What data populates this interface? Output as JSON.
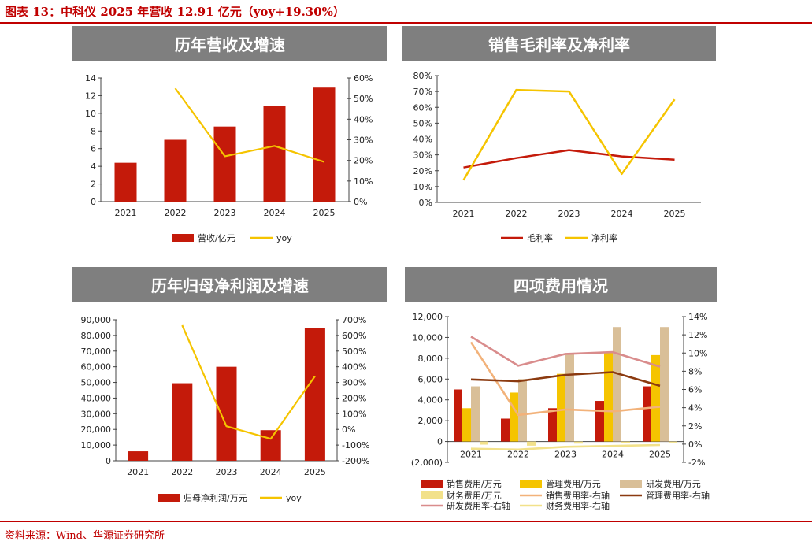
{
  "figure_title": "图表 13：中科仪 2025 年营收 12.91 亿元（yoy+19.30%）",
  "source": "资料来源：Wind、华源证券研究所",
  "colors": {
    "red": "#c41a0a",
    "yellow": "#f5c400",
    "tan": "#d9bf98",
    "pale_yellow": "#f2e18a",
    "pink": "#d98c8c",
    "brown": "#8b3a10",
    "peach": "#f2b27a",
    "banner": "#7f7f7f"
  },
  "chart_data": [
    {
      "id": "revenue",
      "type": "bar",
      "title": "历年营收及增速",
      "categories": [
        "2021",
        "2022",
        "2023",
        "2024",
        "2025"
      ],
      "y_ticks": [
        "0",
        "2",
        "4",
        "6",
        "8",
        "10",
        "12",
        "14"
      ],
      "y2_ticks": [
        "0%",
        "10%",
        "20%",
        "30%",
        "40%",
        "50%",
        "60%"
      ],
      "ylim": [
        0,
        14
      ],
      "y2lim": [
        0,
        60
      ],
      "series": [
        {
          "name": "营收/亿元",
          "kind": "bar",
          "axis": "left",
          "values": [
            4.4,
            7.0,
            8.5,
            10.8,
            12.91
          ]
        },
        {
          "name": "yoy",
          "kind": "line",
          "axis": "right",
          "values": [
            null,
            55,
            22,
            27,
            19.3
          ]
        }
      ],
      "legend": "bottom"
    },
    {
      "id": "margin",
      "type": "line",
      "title": "销售毛利率及净利率",
      "categories": [
        "2021",
        "2022",
        "2023",
        "2024",
        "2025"
      ],
      "y_ticks": [
        "0%",
        "10%",
        "20%",
        "30%",
        "40%",
        "50%",
        "60%",
        "70%",
        "80%"
      ],
      "ylim": [
        0,
        80
      ],
      "series": [
        {
          "name": "毛利率",
          "values": [
            22,
            28,
            33,
            29,
            27
          ]
        },
        {
          "name": "净利率",
          "values": [
            14,
            71,
            70,
            18,
            65
          ]
        }
      ],
      "legend": "bottom"
    },
    {
      "id": "netprofit",
      "type": "bar",
      "title": "历年归母净利润及增速",
      "categories": [
        "2021",
        "2022",
        "2023",
        "2024",
        "2025"
      ],
      "y_ticks": [
        "0",
        "10,000",
        "20,000",
        "30,000",
        "40,000",
        "50,000",
        "60,000",
        "70,000",
        "80,000",
        "90,000"
      ],
      "y2_ticks": [
        "-200%",
        "-100%",
        "0%",
        "100%",
        "200%",
        "300%",
        "400%",
        "500%",
        "600%",
        "700%"
      ],
      "ylim": [
        0,
        90000
      ],
      "y2lim": [
        -200,
        700
      ],
      "series": [
        {
          "name": "归母净利润/万元",
          "kind": "bar",
          "axis": "left",
          "values": [
            6000,
            49500,
            60000,
            19500,
            84500
          ]
        },
        {
          "name": "yoy",
          "kind": "line",
          "axis": "right",
          "values": [
            null,
            665,
            20,
            -60,
            340
          ]
        }
      ],
      "legend": "bottom"
    },
    {
      "id": "expenses",
      "type": "bar",
      "title": "四项费用情况",
      "categories": [
        "2021",
        "2022",
        "2023",
        "2024",
        "2025"
      ],
      "y_ticks": [
        "(2,000)",
        "0",
        "2,000",
        "4,000",
        "6,000",
        "8,000",
        "10,000",
        "12,000"
      ],
      "y2_ticks": [
        "-2%",
        "0%",
        "2%",
        "4%",
        "6%",
        "8%",
        "10%",
        "12%",
        "14%"
      ],
      "ylim": [
        -2000,
        12000
      ],
      "y2lim": [
        -2,
        14
      ],
      "bar_series": [
        {
          "name": "销售费用/万元",
          "values": [
            5000,
            2200,
            3200,
            3900,
            5300
          ]
        },
        {
          "name": "管理费用/万元",
          "values": [
            3200,
            4700,
            6500,
            8500,
            8300
          ]
        },
        {
          "name": "研发费用/万元",
          "values": [
            5300,
            6000,
            8400,
            11000,
            11000
          ]
        },
        {
          "name": "财务费用/万元",
          "values": [
            -300,
            -400,
            -200,
            -150,
            -100
          ]
        }
      ],
      "line_series": [
        {
          "name": "销售费用率-右轴",
          "values": [
            11.2,
            3.2,
            3.8,
            3.6,
            4.1
          ]
        },
        {
          "name": "管理费用率-右轴",
          "values": [
            7.1,
            6.9,
            7.6,
            7.9,
            6.4
          ]
        },
        {
          "name": "研发费用率-右轴",
          "values": [
            11.8,
            8.6,
            9.9,
            10.1,
            8.5
          ]
        },
        {
          "name": "财务费用率-右轴",
          "values": [
            -0.5,
            -0.6,
            -0.3,
            -0.2,
            -0.1
          ]
        }
      ],
      "legend": "bottom"
    }
  ]
}
